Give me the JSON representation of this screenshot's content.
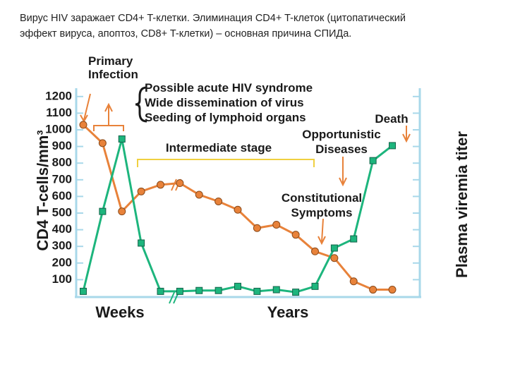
{
  "heading": [
    "Вирус HIV заражает CD4+ T-клетки. Элиминация CD4+ T-клеток (цитопатический",
    "эффект вируса, апоптоз, CD8+ T-клетки) – основная причина СПИДа."
  ],
  "chart_data": {
    "type": "line",
    "ylabel": "CD4 T-cells/mm³",
    "y2label": "Plasma viremia titer",
    "categories": [
      null,
      null,
      null,
      null,
      null,
      null,
      null,
      null,
      null,
      null,
      null,
      null,
      null,
      null,
      null,
      null,
      null
    ],
    "series": [
      {
        "color": "#e8823a",
        "marker": "circle",
        "values": [
          1030,
          920,
          510,
          630,
          670,
          680,
          610,
          570,
          520,
          410,
          430,
          370,
          270,
          230,
          90,
          40,
          40
        ]
      },
      {
        "color": "#1db57d",
        "marker": "square",
        "values": [
          30,
          510,
          945,
          320,
          30,
          30,
          35,
          35,
          60,
          30,
          40,
          25,
          60,
          290,
          345,
          815,
          905
        ]
      }
    ],
    "ylim": [
      0,
      1250
    ],
    "yticks": [
      100,
      200,
      300,
      400,
      500,
      600,
      700,
      800,
      900,
      1000,
      1100,
      1200
    ],
    "annotations": [
      {
        "lines": [
          "Primary",
          "Infection"
        ]
      },
      {
        "lines": [
          "Possible acute HIV syndrome",
          "Wide dissemination of virus",
          "Seeding of lymphoid organs"
        ]
      },
      {
        "lines": [
          "Intermediate stage"
        ]
      },
      {
        "lines": [
          "Death"
        ]
      },
      {
        "lines": [
          "Opportunistic",
          "Diseases"
        ]
      },
      {
        "lines": [
          "Constitutional",
          "Symptoms"
        ]
      },
      {
        "lines": [
          "Weeks"
        ]
      },
      {
        "lines": [
          "Years"
        ]
      }
    ]
  }
}
